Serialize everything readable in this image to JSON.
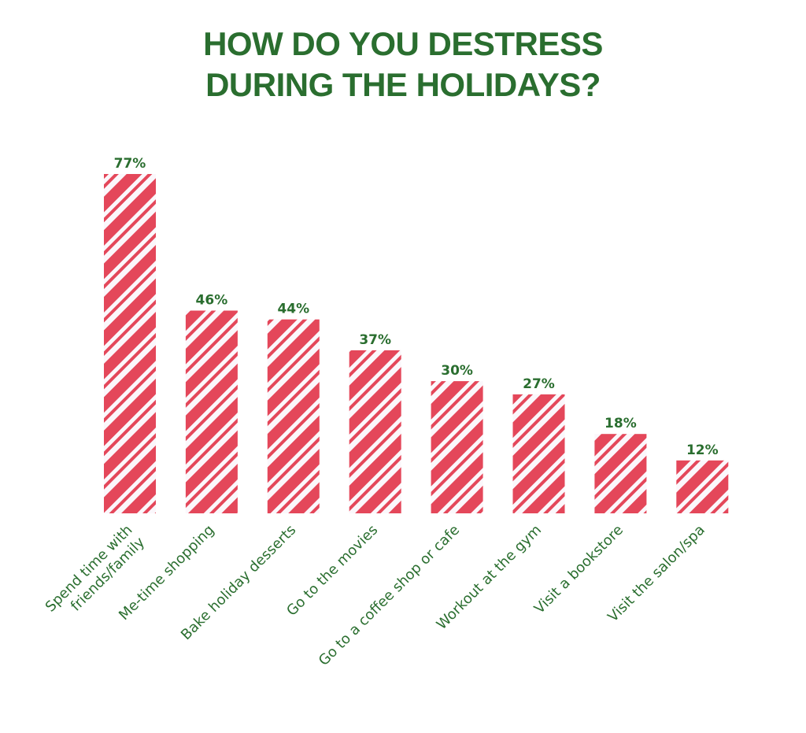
{
  "title_lines": [
    "HOW DO YOU DESTRESS",
    "DURING THE HOLIDAYS?"
  ],
  "colors": {
    "title": "#2a6e2f",
    "labels": "#2a6e2f",
    "stripe": "#e4475a",
    "stripe_background": "#fbf7fb"
  },
  "chart_data": {
    "type": "bar",
    "title": "HOW DO YOU DESTRESS DURING THE HOLIDAYS?",
    "xlabel": "",
    "ylabel": "",
    "ylim": [
      0,
      77
    ],
    "grid": false,
    "categories": [
      [
        "Spend time with",
        "friends/family"
      ],
      [
        "Me-time shopping"
      ],
      [
        "Bake holiday desserts"
      ],
      [
        "Go to the movies"
      ],
      [
        "Go to a coffee shop or cafe"
      ],
      [
        "Workout at the gym"
      ],
      [
        "Visit a bookstore"
      ],
      [
        "Visit the salon/spa"
      ]
    ],
    "values": [
      77,
      46,
      44,
      37,
      30,
      27,
      18,
      12
    ],
    "value_labels": [
      "77%",
      "46%",
      "44%",
      "37%",
      "30%",
      "27%",
      "18%",
      "12%"
    ]
  }
}
